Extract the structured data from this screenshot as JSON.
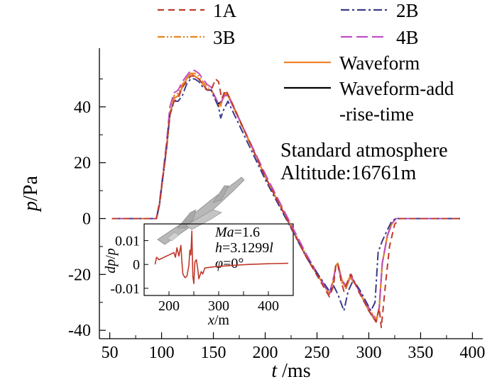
{
  "chart_data": {
    "type": "line",
    "xlabel": {
      "italic": "t",
      "rest": " /ms"
    },
    "ylabel": {
      "italic": "p",
      "rest": "/Pa"
    },
    "xlim": [
      40,
      410
    ],
    "ylim": [
      -43,
      61
    ],
    "xticks": [
      50,
      100,
      150,
      200,
      250,
      300,
      350,
      400
    ],
    "yticks": [
      -40,
      -20,
      0,
      20,
      40
    ],
    "annotation": [
      "Standard atmosphere",
      "Altitude:16761m"
    ],
    "series": [
      {
        "name": "1A",
        "color": "#c0392b",
        "dash": "9,6",
        "points": [
          [
            52,
            0
          ],
          [
            95,
            0
          ],
          [
            98,
            5
          ],
          [
            101,
            14
          ],
          [
            105,
            26
          ],
          [
            108,
            37
          ],
          [
            112,
            42
          ],
          [
            116,
            43
          ],
          [
            120,
            47
          ],
          [
            124,
            49
          ],
          [
            128,
            51
          ],
          [
            132,
            51
          ],
          [
            136,
            50
          ],
          [
            140,
            48
          ],
          [
            144,
            46
          ],
          [
            148,
            46
          ],
          [
            152,
            50
          ],
          [
            155,
            49
          ],
          [
            158,
            43
          ],
          [
            162,
            46
          ],
          [
            166,
            43
          ],
          [
            200,
            15
          ],
          [
            240,
            -14
          ],
          [
            262,
            -28
          ],
          [
            266,
            -24
          ],
          [
            268,
            -17
          ],
          [
            270,
            -16
          ],
          [
            273,
            -22
          ],
          [
            276,
            -26
          ],
          [
            280,
            -22
          ],
          [
            283,
            -20
          ],
          [
            290,
            -26
          ],
          [
            300,
            -33
          ],
          [
            307,
            -37
          ],
          [
            310,
            -32
          ],
          [
            312,
            -39
          ],
          [
            316,
            -24
          ],
          [
            320,
            -10
          ],
          [
            325,
            -2
          ],
          [
            330,
            0
          ],
          [
            388,
            0
          ]
        ]
      },
      {
        "name": "2B",
        "color": "#3a3a8c",
        "dash": "12,4,3,4",
        "points": [
          [
            52,
            0
          ],
          [
            95,
            0
          ],
          [
            98,
            5
          ],
          [
            101,
            14
          ],
          [
            105,
            26
          ],
          [
            108,
            37
          ],
          [
            112,
            42
          ],
          [
            116,
            42
          ],
          [
            120,
            44
          ],
          [
            124,
            48
          ],
          [
            128,
            50
          ],
          [
            132,
            50
          ],
          [
            136,
            49
          ],
          [
            140,
            47
          ],
          [
            144,
            46
          ],
          [
            148,
            46
          ],
          [
            150,
            44
          ],
          [
            155,
            40
          ],
          [
            157,
            36
          ],
          [
            160,
            39
          ],
          [
            164,
            42
          ],
          [
            200,
            14
          ],
          [
            240,
            -14
          ],
          [
            262,
            -26
          ],
          [
            266,
            -24
          ],
          [
            270,
            -27
          ],
          [
            276,
            -33
          ],
          [
            280,
            -26
          ],
          [
            285,
            -22
          ],
          [
            292,
            -26
          ],
          [
            302,
            -33
          ],
          [
            306,
            -30
          ],
          [
            309,
            -12
          ],
          [
            313,
            -8
          ],
          [
            318,
            -4
          ],
          [
            322,
            -1
          ],
          [
            326,
            0
          ],
          [
            388,
            0
          ]
        ]
      },
      {
        "name": "3B",
        "color": "#e8841a",
        "dash": "10,3,2,3,2,3",
        "points": [
          [
            52,
            0
          ],
          [
            95,
            0
          ],
          [
            98,
            5
          ],
          [
            101,
            14
          ],
          [
            105,
            26
          ],
          [
            108,
            38
          ],
          [
            112,
            44
          ],
          [
            116,
            45
          ],
          [
            120,
            48
          ],
          [
            124,
            50
          ],
          [
            128,
            52
          ],
          [
            132,
            52
          ],
          [
            136,
            51
          ],
          [
            140,
            49
          ],
          [
            144,
            47
          ],
          [
            148,
            46
          ],
          [
            151,
            44
          ],
          [
            155,
            41
          ],
          [
            157,
            40
          ],
          [
            160,
            45
          ],
          [
            164,
            44
          ],
          [
            200,
            15
          ],
          [
            240,
            -13
          ],
          [
            262,
            -27
          ],
          [
            266,
            -22
          ],
          [
            268,
            -17
          ],
          [
            270,
            -16
          ],
          [
            274,
            -23
          ],
          [
            278,
            -24
          ],
          [
            282,
            -20
          ],
          [
            288,
            -24
          ],
          [
            300,
            -32
          ],
          [
            307,
            -36
          ],
          [
            310,
            -32
          ],
          [
            313,
            -16
          ],
          [
            318,
            -6
          ],
          [
            322,
            -2
          ],
          [
            326,
            0
          ],
          [
            388,
            0
          ]
        ]
      },
      {
        "name": "4B",
        "color": "#c24fc2",
        "dash": "16,6",
        "points": [
          [
            52,
            0
          ],
          [
            95,
            0
          ],
          [
            98,
            6
          ],
          [
            101,
            15
          ],
          [
            105,
            28
          ],
          [
            108,
            40
          ],
          [
            112,
            45
          ],
          [
            116,
            46
          ],
          [
            120,
            49
          ],
          [
            124,
            51
          ],
          [
            128,
            53
          ],
          [
            132,
            53
          ],
          [
            136,
            52
          ],
          [
            140,
            50
          ],
          [
            144,
            48
          ],
          [
            148,
            47
          ],
          [
            151,
            44
          ],
          [
            155,
            41
          ],
          [
            157,
            41
          ],
          [
            160,
            44
          ],
          [
            164,
            44
          ],
          [
            200,
            16
          ],
          [
            240,
            -13
          ],
          [
            262,
            -27
          ],
          [
            266,
            -21
          ],
          [
            268,
            -18
          ],
          [
            270,
            -17
          ],
          [
            274,
            -22
          ],
          [
            278,
            -24
          ],
          [
            282,
            -20
          ],
          [
            288,
            -24
          ],
          [
            300,
            -32
          ],
          [
            307,
            -37
          ],
          [
            310,
            -32
          ],
          [
            313,
            -16
          ],
          [
            318,
            -6
          ],
          [
            322,
            -2
          ],
          [
            326,
            0
          ],
          [
            388,
            0
          ]
        ]
      },
      {
        "name": "Waveform",
        "color": "#f0822a",
        "dash": "",
        "points": [
          [
            52,
            0
          ],
          [
            95,
            0
          ],
          [
            98,
            5
          ],
          [
            101,
            14
          ],
          [
            105,
            26
          ],
          [
            108,
            37
          ],
          [
            112,
            43
          ],
          [
            116,
            44
          ],
          [
            120,
            47
          ],
          [
            124,
            50
          ],
          [
            128,
            52
          ],
          [
            132,
            51
          ],
          [
            136,
            50
          ],
          [
            140,
            48
          ],
          [
            144,
            46
          ],
          [
            148,
            46
          ],
          [
            151,
            44
          ],
          [
            155,
            40
          ],
          [
            158,
            42
          ],
          [
            162,
            45
          ],
          [
            166,
            43
          ],
          [
            200,
            15
          ],
          [
            240,
            -14
          ],
          [
            262,
            -27
          ],
          [
            266,
            -22
          ],
          [
            268,
            -17
          ],
          [
            270,
            -16
          ],
          [
            274,
            -22
          ],
          [
            278,
            -25
          ],
          [
            282,
            -21
          ],
          [
            288,
            -24
          ],
          [
            300,
            -33
          ],
          [
            307,
            -37
          ],
          [
            310,
            -32
          ],
          [
            313,
            -16
          ],
          [
            318,
            -6
          ],
          [
            322,
            -2
          ],
          [
            326,
            0
          ],
          [
            388,
            0
          ]
        ]
      },
      {
        "name": "Waveform-add\n-rise-time",
        "color": "#000000",
        "dash": "",
        "points": [
          [
            52,
            0
          ],
          [
            95,
            0
          ],
          [
            98,
            5
          ],
          [
            101,
            14
          ],
          [
            105,
            26
          ],
          [
            108,
            37
          ],
          [
            112,
            43
          ],
          [
            116,
            44
          ],
          [
            120,
            47
          ],
          [
            124,
            50
          ],
          [
            128,
            52
          ],
          [
            132,
            51
          ],
          [
            136,
            50
          ],
          [
            140,
            48
          ],
          [
            144,
            46
          ],
          [
            148,
            46
          ],
          [
            151,
            44
          ],
          [
            155,
            41
          ],
          [
            158,
            42
          ],
          [
            162,
            45
          ],
          [
            166,
            43
          ],
          [
            200,
            15
          ],
          [
            240,
            -14
          ],
          [
            262,
            -27
          ],
          [
            266,
            -22
          ],
          [
            268,
            -17
          ],
          [
            270,
            -16
          ],
          [
            274,
            -22
          ],
          [
            278,
            -25
          ],
          [
            282,
            -21
          ],
          [
            288,
            -24
          ],
          [
            300,
            -33
          ],
          [
            307,
            -37
          ],
          [
            310,
            -32
          ],
          [
            313,
            -16
          ],
          [
            318,
            -6
          ],
          [
            322,
            -2
          ],
          [
            326,
            0
          ],
          [
            388,
            0
          ]
        ]
      }
    ],
    "inset": {
      "type": "line",
      "xlabel": {
        "italic": "x",
        "rest": "/m"
      },
      "ylabel": {
        "italic1": "dp",
        "sep": "/",
        "italic2": "p"
      },
      "xlim": [
        150,
        450
      ],
      "ylim": [
        -0.013,
        0.017
      ],
      "xticks": [
        200,
        250,
        300,
        350,
        400
      ],
      "yticks": [
        -0.01,
        0,
        0.01
      ],
      "ytick_labels": [
        "-0.01",
        "0",
        "0.01"
      ],
      "text_lines": [
        {
          "italic": "Ma",
          "rest": "=1.6"
        },
        {
          "italic": "h",
          "rest": "=3.1299",
          "italic_tail": "l"
        },
        {
          "italic": "φ",
          "rest": "=0°"
        }
      ],
      "series": [
        {
          "name": "dp/p",
          "color": "#c0392b",
          "points": [
            [
              172,
              0
            ],
            [
              175,
              0.003
            ],
            [
              180,
              0.002
            ],
            [
              190,
              0.003
            ],
            [
              200,
              0.004
            ],
            [
              210,
              0.005
            ],
            [
              213,
              0.003
            ],
            [
              216,
              0.007
            ],
            [
              220,
              0.0035
            ],
            [
              224,
              0.008
            ],
            [
              226,
              0.001
            ],
            [
              228,
              -0.004
            ],
            [
              232,
              -0.0055
            ],
            [
              236,
              -0.005
            ],
            [
              240,
              -0.0005
            ],
            [
              242,
              0.006
            ],
            [
              244,
              0.004
            ],
            [
              246,
              0.014
            ],
            [
              248,
              -0.005
            ],
            [
              250,
              -0.008
            ],
            [
              252,
              0.001
            ],
            [
              255,
              0.002
            ],
            [
              258,
              -0.002
            ],
            [
              260,
              -0.006
            ],
            [
              265,
              -0.003
            ],
            [
              268,
              -0.004
            ],
            [
              272,
              -0.0015
            ],
            [
              290,
              -0.001
            ],
            [
              320,
              -0.0005
            ],
            [
              360,
              0
            ],
            [
              400,
              0.0003
            ],
            [
              440,
              0.0005
            ]
          ]
        }
      ]
    }
  }
}
